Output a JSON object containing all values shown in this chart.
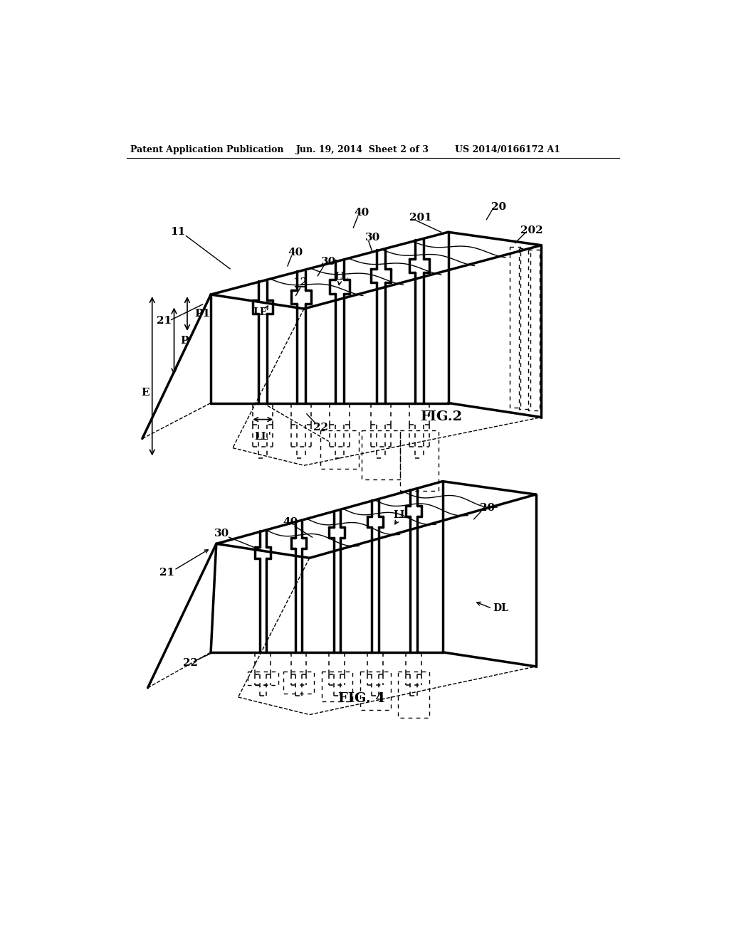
{
  "bg_color": "#ffffff",
  "header_left": "Patent Application Publication",
  "header_center": "Jun. 19, 2014  Sheet 2 of 3",
  "header_right": "US 2014/0166172 A1",
  "fig2_label": "FIG.2",
  "fig4_label": "FIG. 4"
}
